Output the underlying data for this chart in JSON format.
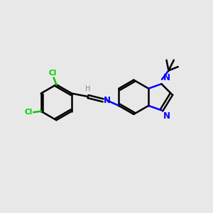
{
  "background_color": "#e8e8e8",
  "bond_color": "#000000",
  "nitrogen_color": "#0000ff",
  "chlorine_color": "#00cc00",
  "hydrogen_color": "#888888",
  "line_width": 1.8,
  "figsize": [
    3.0,
    3.0
  ],
  "dpi": 100,
  "xlim": [
    0,
    10
  ],
  "ylim": [
    0,
    10
  ]
}
